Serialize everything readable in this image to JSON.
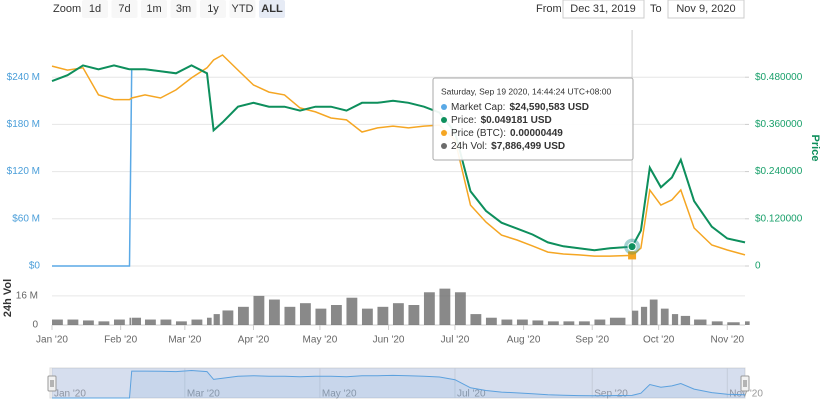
{
  "chart_data": {
    "type": "line",
    "range_selector": {
      "zoom_label": "Zoom",
      "buttons": [
        "1d",
        "7d",
        "1m",
        "3m",
        "1y",
        "YTD",
        "ALL"
      ],
      "selected": "ALL"
    },
    "date_range": {
      "from_label": "From",
      "from": "Dec 31, 2019",
      "to_label": "To",
      "to": "Nov 9, 2020"
    },
    "x": [
      0,
      7,
      14,
      21,
      28,
      35,
      36,
      42,
      49,
      56,
      63,
      70,
      73,
      77,
      84,
      91,
      98,
      105,
      112,
      119,
      126,
      133,
      140,
      147,
      154,
      161,
      168,
      175,
      182,
      189,
      196,
      203,
      210,
      217,
      224,
      231,
      238,
      245,
      252,
      262,
      266,
      270,
      275,
      280,
      284,
      290,
      298,
      305,
      313
    ],
    "xlim": [
      0,
      313
    ],
    "xticks": [
      {
        "value": 0,
        "label": "Jan '20"
      },
      {
        "value": 31,
        "label": "Feb '20"
      },
      {
        "value": 60,
        "label": "Mar '20"
      },
      {
        "value": 91,
        "label": "Apr '20"
      },
      {
        "value": 121,
        "label": "May '20"
      },
      {
        "value": 152,
        "label": "Jun '20"
      },
      {
        "value": 182,
        "label": "Jul '20"
      },
      {
        "value": 213,
        "label": "Aug '20"
      },
      {
        "value": 244,
        "label": "Sep '20"
      },
      {
        "value": 274,
        "label": "Oct '20"
      },
      {
        "value": 305,
        "label": "Nov '20"
      }
    ],
    "ylim": [
      0,
      300000000
    ],
    "yticks": [
      {
        "value": 0,
        "label": "$0"
      },
      {
        "value": 60000000,
        "label": "$60 M"
      },
      {
        "value": 120000000,
        "label": "$120 M"
      },
      {
        "value": 180000000,
        "label": "$180 M"
      },
      {
        "value": 240000000,
        "label": "$240 M"
      }
    ],
    "y2lim": [
      0,
      0.6
    ],
    "y2ticks": [
      0,
      {
        "value": 0.12,
        "label": "$0.120000"
      },
      {
        "value": 0.24,
        "label": "$0.240000"
      },
      {
        "value": 0.36,
        "label": "$0.360000"
      },
      {
        "value": 0.48,
        "label": "$0.480000"
      }
    ],
    "y2label": "Price",
    "y3lim": [
      0,
      0.0001
    ],
    "y4lim": [
      0,
      22000000
    ],
    "y4ticks": [
      0,
      {
        "value": 16000000,
        "label": "16 M"
      }
    ],
    "y4label": "24h Vol",
    "grid": true,
    "tooltip_title": "Saturday, Sep 19 2020, 14:44:24 UTC+08:00",
    "series": [
      {
        "name": "Market Cap:",
        "type": "line",
        "axis": "y",
        "color": "#5aa9e6",
        "values": [
          0,
          0,
          0,
          0,
          0,
          0,
          250000000,
          250000000,
          247500000,
          245000000,
          255000000,
          245000000,
          172500000,
          182500000,
          202500000,
          207500000,
          202500000,
          202500000,
          197500000,
          202500000,
          202500000,
          197500000,
          207500000,
          207500000,
          210000000,
          207500000,
          202500000,
          195000000,
          170000000,
          95000000,
          70000000,
          55000000,
          47500000,
          40000000,
          30000000,
          25000000,
          22500000,
          20000000,
          22500000,
          24590583,
          45000000,
          125000000,
          100000000,
          112500000,
          135000000,
          82500000,
          50000000,
          35000000,
          30000000
        ],
        "value_labels": [
          null,
          null,
          null,
          null,
          null,
          null,
          null,
          null,
          null,
          null,
          null,
          null,
          null,
          null,
          null,
          null,
          null,
          null,
          null,
          null,
          null,
          null,
          null,
          null,
          null,
          null,
          null,
          null,
          null,
          null,
          null,
          null,
          null,
          null,
          null,
          null,
          null,
          null,
          null,
          "$24,590,583 USD",
          null,
          null,
          null,
          null,
          null,
          null,
          null,
          null,
          null
        ]
      },
      {
        "name": "Price (BTC):",
        "type": "line",
        "axis": "y3",
        "color": "#f5a623",
        "values": [
          8.47e-05,
          8.3e-05,
          8.4e-05,
          7.25e-05,
          7.05e-05,
          7.05e-05,
          7.12e-05,
          7.25e-05,
          7.12e-05,
          7.46e-05,
          7.97e-05,
          8.4e-05,
          8.73e-05,
          8.94e-05,
          8.3e-05,
          7.67e-05,
          7.37e-05,
          7.25e-05,
          6.7e-05,
          6.53e-05,
          6.27e-05,
          6.19e-05,
          5.68e-05,
          5.85e-05,
          5.93e-05,
          5.85e-05,
          5.93e-05,
          5.97e-05,
          5.34e-05,
          2.58e-05,
          1.86e-05,
          1.31e-05,
          1.1e-05,
          8.5e-06,
          5.9e-06,
          5.1e-06,
          4.7e-06,
          4.2e-06,
          4.2e-06,
          4.49e-06,
          7.6e-06,
          3.22e-05,
          2.58e-05,
          2.8e-05,
          3.22e-05,
          1.61e-05,
          8.9e-06,
          6.8e-06,
          4.7e-06
        ],
        "value_labels": [
          null,
          null,
          null,
          null,
          null,
          null,
          null,
          null,
          null,
          null,
          null,
          null,
          null,
          null,
          null,
          null,
          null,
          null,
          null,
          null,
          null,
          null,
          null,
          null,
          null,
          null,
          null,
          null,
          null,
          null,
          null,
          null,
          null,
          null,
          null,
          null,
          null,
          null,
          null,
          "0.00000449",
          null,
          null,
          null,
          null,
          null,
          null,
          null,
          null,
          null
        ]
      },
      {
        "name": "Price:",
        "type": "line",
        "axis": "y2",
        "color": "#0e8f5c",
        "values": [
          0.47,
          0.485,
          0.51,
          0.5,
          0.51,
          0.5,
          0.5,
          0.5,
          0.495,
          0.49,
          0.51,
          0.49,
          0.345,
          0.365,
          0.405,
          0.415,
          0.405,
          0.405,
          0.395,
          0.405,
          0.405,
          0.395,
          0.415,
          0.415,
          0.42,
          0.415,
          0.405,
          0.39,
          0.34,
          0.19,
          0.14,
          0.11,
          0.095,
          0.08,
          0.06,
          0.05,
          0.045,
          0.04,
          0.045,
          0.049181,
          0.09,
          0.25,
          0.2,
          0.225,
          0.27,
          0.165,
          0.1,
          0.07,
          0.06
        ],
        "value_labels": [
          null,
          null,
          null,
          null,
          null,
          null,
          null,
          null,
          null,
          null,
          null,
          null,
          null,
          null,
          null,
          null,
          null,
          null,
          null,
          null,
          null,
          null,
          null,
          null,
          null,
          null,
          null,
          null,
          null,
          null,
          null,
          null,
          null,
          null,
          null,
          null,
          null,
          null,
          null,
          "$0.049181 USD",
          null,
          null,
          null,
          null,
          null,
          null,
          null,
          null,
          null
        ]
      },
      {
        "name": "24h Vol:",
        "type": "bar",
        "axis": "y4",
        "color": "#6b6b6b",
        "values": [
          3000000,
          3000000,
          2500000,
          2000000,
          3000000,
          4000000,
          4000000,
          3000000,
          3000000,
          2000000,
          3000000,
          4000000,
          6000000,
          8000000,
          10000000,
          16000000,
          14000000,
          10000000,
          12000000,
          9000000,
          11000000,
          15000000,
          9000000,
          10000000,
          12000000,
          11000000,
          18000000,
          20000000,
          18000000,
          6000000,
          4000000,
          3000000,
          3000000,
          2500000,
          2000000,
          2000000,
          2000000,
          3000000,
          4000000,
          7886499,
          10000000,
          14000000,
          9000000,
          6000000,
          5000000,
          3000000,
          2000000,
          1500000,
          2000000
        ],
        "value_labels": [
          null,
          null,
          null,
          null,
          null,
          null,
          null,
          null,
          null,
          null,
          null,
          null,
          null,
          null,
          null,
          null,
          null,
          null,
          null,
          null,
          null,
          null,
          null,
          null,
          null,
          null,
          null,
          null,
          null,
          null,
          null,
          null,
          null,
          null,
          null,
          null,
          null,
          null,
          null,
          "$7,886,499 USD",
          null,
          null,
          null,
          null,
          null,
          null,
          null,
          null,
          null
        ]
      }
    ],
    "navigator": {
      "ylim": [
        0,
        260000000
      ],
      "xticks": [
        {
          "value": 0,
          "label": "Jan '20"
        },
        {
          "value": 60,
          "label": "Mar '20"
        },
        {
          "value": 121,
          "label": "May '20"
        },
        {
          "value": 182,
          "label": "Jul '20"
        },
        {
          "value": 244,
          "label": "Sep '20"
        },
        {
          "value": 305,
          "label": "Nov '20"
        }
      ]
    }
  }
}
